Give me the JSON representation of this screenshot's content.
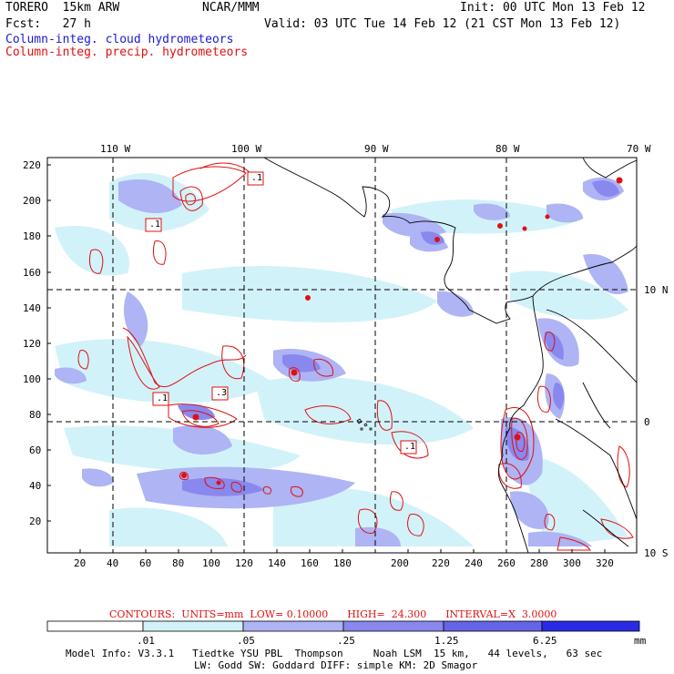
{
  "header": {
    "model": "TORERO  15km ARW",
    "org": "NCAR/MMM",
    "init": "Init: 00 UTC Mon 13 Feb 12",
    "fcst": "Fcst:   27 h",
    "valid": "Valid: 03 UTC Tue 14 Feb 12 (21 CST Mon 13 Feb 12)",
    "legend_cloud": "Column-integ. cloud hydrometeors",
    "legend_precip": "Column-integ. precip. hydrometeors"
  },
  "colors": {
    "cloud": "#1a1ad0",
    "precip": "#e01010",
    "shade1": "#d2f2fa",
    "shade2": "#aeb4f4",
    "shade3": "#8888ee",
    "shade4": "#6464e8",
    "shade5": "#2a2ae6"
  },
  "axes": {
    "lon_labels": [
      "110 W",
      "100 W",
      "90 W",
      "80 W",
      "70 W"
    ],
    "lat_labels": [
      "10 N",
      "0",
      "10 S"
    ],
    "x_ticks": [
      "20",
      "40",
      "60",
      "80",
      "100",
      "120",
      "140",
      "160",
      "180",
      "200",
      "220",
      "240",
      "260",
      "280",
      "300",
      "320"
    ],
    "y_ticks": [
      "220",
      "200",
      "180",
      "160",
      "140",
      "120",
      "100",
      "80",
      "60",
      "40",
      "20"
    ]
  },
  "contour_boxes": [
    ".1",
    ".1",
    ".1",
    ".3",
    ".1"
  ],
  "contours_info": "CONTOURS:  UNITS=mm  LOW= 0.10000      HIGH=  24.300      INTERVAL=X  3.0000",
  "colorbar": {
    "labels": [
      ".01",
      ".05",
      ".25",
      "1.25",
      "6.25"
    ],
    "units": "mm"
  },
  "footer": {
    "line1": "Model Info: V3.3.1   Tiedtke YSU PBL  Thompson     Noah LSM  15 km,   44 levels,   63 sec",
    "line2": "LW: Godd SW: Goddard DIFF: simple KM: 2D Smagor"
  }
}
